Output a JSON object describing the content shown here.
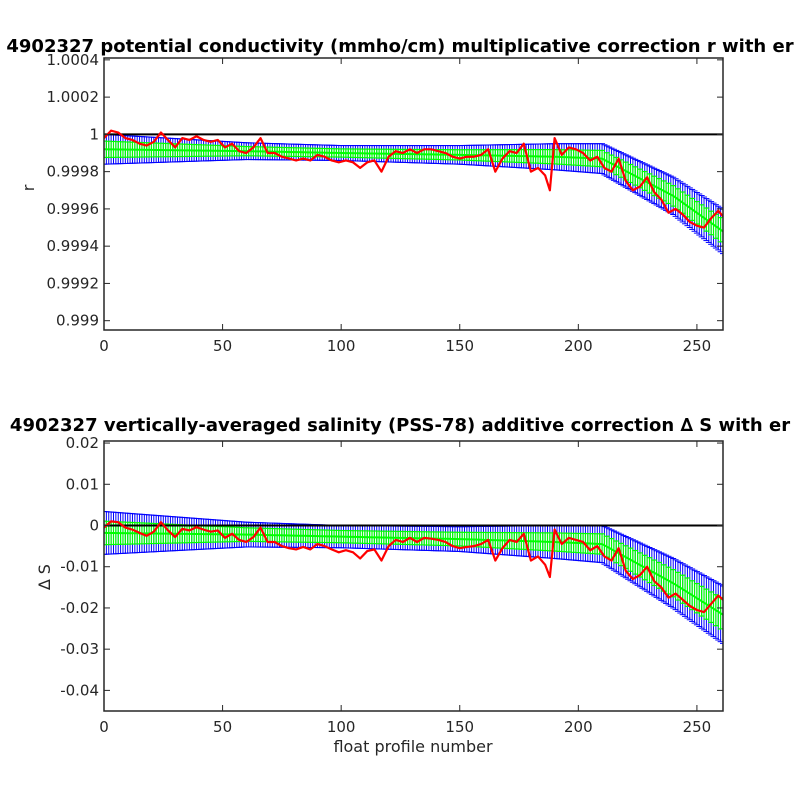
{
  "colors": {
    "background": "#ffffff",
    "axes": "#262626",
    "reference_line": "#000000",
    "error_bars": "#0000ff",
    "fit_band": "#00ff00",
    "data_line": "#ff0000"
  },
  "chart_data": [
    {
      "type": "line",
      "title": "4902327 potential conductivity (mmho/cm) multiplicative correction r with er",
      "xlabel": "",
      "ylabel": "r",
      "xlim": [
        0,
        261
      ],
      "ylim": [
        0.99895,
        1.00041
      ],
      "xticks": [
        0,
        50,
        100,
        150,
        200,
        250
      ],
      "yticks": [
        0.999,
        0.9992,
        0.9994,
        0.9996,
        0.9998,
        1,
        1.0002,
        1.0004
      ],
      "ytick_labels": [
        "0.999",
        "0.9992",
        "0.9994",
        "0.9996",
        "0.9998",
        "1",
        "1.0002",
        "1.0004"
      ],
      "reference_line": 1,
      "fit": {
        "knots_x": [
          0,
          60,
          100,
          150,
          190,
          210,
          240,
          262
        ],
        "knots_y": [
          0.99992,
          0.99991,
          0.9999,
          0.99989,
          0.99988,
          0.99987,
          0.99967,
          0.99947
        ],
        "error_halfwidth": [
          8e-05,
          4.5e-05,
          4e-05,
          5e-05,
          7e-05,
          8e-05,
          0.0001,
          0.00012
        ],
        "green_halfwidth_ratio": 0.55
      },
      "series": [
        {
          "name": "",
          "x": [
            0,
            3,
            6,
            9,
            12,
            15,
            18,
            21,
            24,
            27,
            30,
            33,
            36,
            39,
            42,
            45,
            48,
            51,
            54,
            57,
            60,
            63,
            66,
            69,
            72,
            75,
            78,
            81,
            84,
            87,
            90,
            93,
            96,
            99,
            102,
            105,
            108,
            111,
            114,
            117,
            120,
            123,
            126,
            129,
            132,
            135,
            138,
            141,
            144,
            147,
            150,
            153,
            156,
            159,
            162,
            165,
            168,
            171,
            174,
            177,
            180,
            183,
            186,
            188,
            190,
            193,
            196,
            199,
            202,
            205,
            208,
            211,
            214,
            217,
            220,
            223,
            226,
            229,
            232,
            235,
            238,
            241,
            244,
            247,
            250,
            253,
            256,
            259,
            261
          ],
          "y": [
            0.99998,
            1.00002,
            1.00001,
            0.99998,
            0.99997,
            0.99995,
            0.99994,
            0.99996,
            1.00001,
            0.99997,
            0.99993,
            0.99998,
            0.99997,
            0.99999,
            0.99997,
            0.99996,
            0.99997,
            0.99993,
            0.99995,
            0.99991,
            0.9999,
            0.99993,
            0.99998,
            0.9999,
            0.9999,
            0.99988,
            0.99987,
            0.99986,
            0.99987,
            0.99986,
            0.99989,
            0.99988,
            0.99986,
            0.99985,
            0.99986,
            0.99985,
            0.99982,
            0.99985,
            0.99986,
            0.9998,
            0.99988,
            0.99991,
            0.9999,
            0.99992,
            0.9999,
            0.99992,
            0.99992,
            0.99991,
            0.9999,
            0.99988,
            0.99987,
            0.99988,
            0.99988,
            0.99989,
            0.99992,
            0.9998,
            0.99987,
            0.99991,
            0.9999,
            0.99995,
            0.9998,
            0.99982,
            0.99978,
            0.9997,
            0.99998,
            0.99989,
            0.99993,
            0.99992,
            0.9999,
            0.99986,
            0.99988,
            0.99982,
            0.9998,
            0.99987,
            0.99975,
            0.9997,
            0.99972,
            0.99977,
            0.99969,
            0.99965,
            0.99958,
            0.9996,
            0.99957,
            0.99953,
            0.99951,
            0.9995,
            0.99955,
            0.99959,
            0.99956
          ]
        }
      ]
    },
    {
      "type": "line",
      "title": "4902327 vertically-averaged salinity (PSS-78) additive correction ∆ S with er",
      "xlabel": "float profile number",
      "ylabel": "∆ S",
      "xlim": [
        0,
        261
      ],
      "ylim": [
        -0.045,
        0.0205
      ],
      "xticks": [
        0,
        50,
        100,
        150,
        200,
        250
      ],
      "yticks": [
        -0.04,
        -0.03,
        -0.02,
        -0.01,
        0,
        0.01,
        0.02
      ],
      "ytick_labels": [
        "-0.04",
        "-0.03",
        "-0.02",
        "-0.01",
        "0",
        "0.01",
        "0.02"
      ],
      "reference_line": 0,
      "fit": {
        "knots_x": [
          0,
          60,
          100,
          150,
          190,
          210,
          240,
          262
        ],
        "knots_y": [
          -0.0018,
          -0.0022,
          -0.0027,
          -0.0033,
          -0.004,
          -0.0045,
          -0.014,
          -0.022
        ],
        "error_halfwidth": [
          0.0052,
          0.003,
          0.0027,
          0.003,
          0.004,
          0.0045,
          0.006,
          0.007
        ],
        "green_halfwidth_ratio": 0.55
      },
      "series": [
        {
          "name": "",
          "x": [
            0,
            3,
            6,
            9,
            12,
            15,
            18,
            21,
            24,
            27,
            30,
            33,
            36,
            39,
            42,
            45,
            48,
            51,
            54,
            57,
            60,
            63,
            66,
            69,
            72,
            75,
            78,
            81,
            84,
            87,
            90,
            93,
            96,
            99,
            102,
            105,
            108,
            111,
            114,
            117,
            120,
            123,
            126,
            129,
            132,
            135,
            138,
            141,
            144,
            147,
            150,
            153,
            156,
            159,
            162,
            165,
            168,
            171,
            174,
            177,
            180,
            183,
            186,
            188,
            190,
            193,
            196,
            199,
            202,
            205,
            208,
            211,
            214,
            217,
            220,
            223,
            226,
            229,
            232,
            235,
            238,
            241,
            244,
            247,
            250,
            253,
            256,
            259,
            261
          ],
          "y": [
            -0.0005,
            0.001,
            0.0008,
            -0.0005,
            -0.001,
            -0.0018,
            -0.0025,
            -0.0015,
            0.0008,
            -0.0012,
            -0.0028,
            -0.0008,
            -0.0012,
            -0.0004,
            -0.001,
            -0.0015,
            -0.0012,
            -0.003,
            -0.002,
            -0.0035,
            -0.004,
            -0.0028,
            -0.0005,
            -0.004,
            -0.004,
            -0.005,
            -0.0055,
            -0.0058,
            -0.0052,
            -0.0058,
            -0.0045,
            -0.005,
            -0.0058,
            -0.0065,
            -0.006,
            -0.0065,
            -0.008,
            -0.0062,
            -0.0058,
            -0.0085,
            -0.005,
            -0.0035,
            -0.004,
            -0.003,
            -0.004,
            -0.003,
            -0.0032,
            -0.0035,
            -0.004,
            -0.005,
            -0.0055,
            -0.0052,
            -0.005,
            -0.0045,
            -0.0035,
            -0.0085,
            -0.0055,
            -0.0035,
            -0.004,
            -0.002,
            -0.0085,
            -0.0075,
            -0.0095,
            -0.0125,
            -0.001,
            -0.0045,
            -0.003,
            -0.0035,
            -0.004,
            -0.006,
            -0.005,
            -0.0075,
            -0.0085,
            -0.0055,
            -0.011,
            -0.013,
            -0.012,
            -0.01,
            -0.0135,
            -0.015,
            -0.0175,
            -0.0165,
            -0.018,
            -0.0195,
            -0.0205,
            -0.021,
            -0.019,
            -0.017,
            -0.018
          ]
        }
      ]
    }
  ]
}
